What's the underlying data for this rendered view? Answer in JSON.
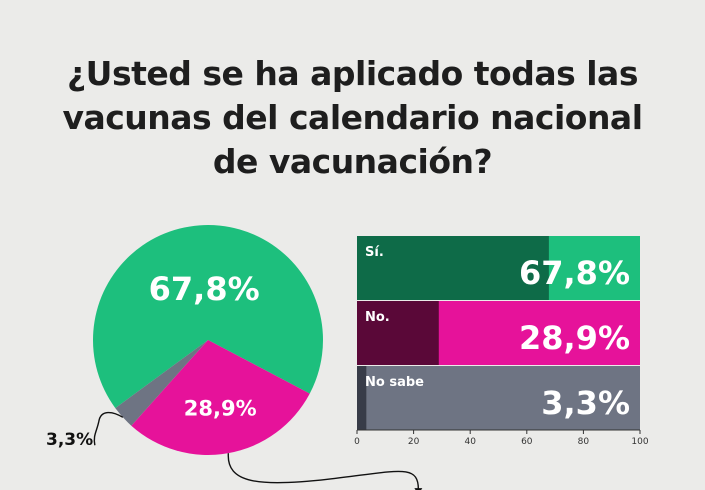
{
  "title_lines": [
    "¿Usted se ha aplicado todas las",
    "vacunas del calendario nacional",
    "de vacunación?"
  ],
  "chart_data": [
    {
      "type": "pie",
      "title": "¿Usted se ha aplicado todas las vacunas del calendario nacional de vacunación?",
      "categories": [
        "Sí.",
        "No.",
        "No sabe"
      ],
      "values": [
        67.8,
        28.9,
        3.3
      ],
      "labels": [
        "67,8%",
        "28,9%",
        "3,3%"
      ],
      "colors": [
        "#1dbf7d",
        "#e6129a",
        "#6e7483"
      ]
    },
    {
      "type": "bar",
      "orientation": "horizontal",
      "categories": [
        "Sí.",
        "No.",
        "No sabe"
      ],
      "values": [
        67.8,
        28.9,
        3.3
      ],
      "labels": [
        "67,8%",
        "28,9%",
        "3,3%"
      ],
      "xlim": [
        0,
        100
      ],
      "xticks": [
        0,
        20,
        40,
        60,
        80,
        100
      ],
      "colors": [
        "#1dbf7d",
        "#e6129a",
        "#6e7483"
      ],
      "fill_colors": [
        "#0e6b48",
        "#5a0838",
        "#383c48"
      ]
    }
  ]
}
